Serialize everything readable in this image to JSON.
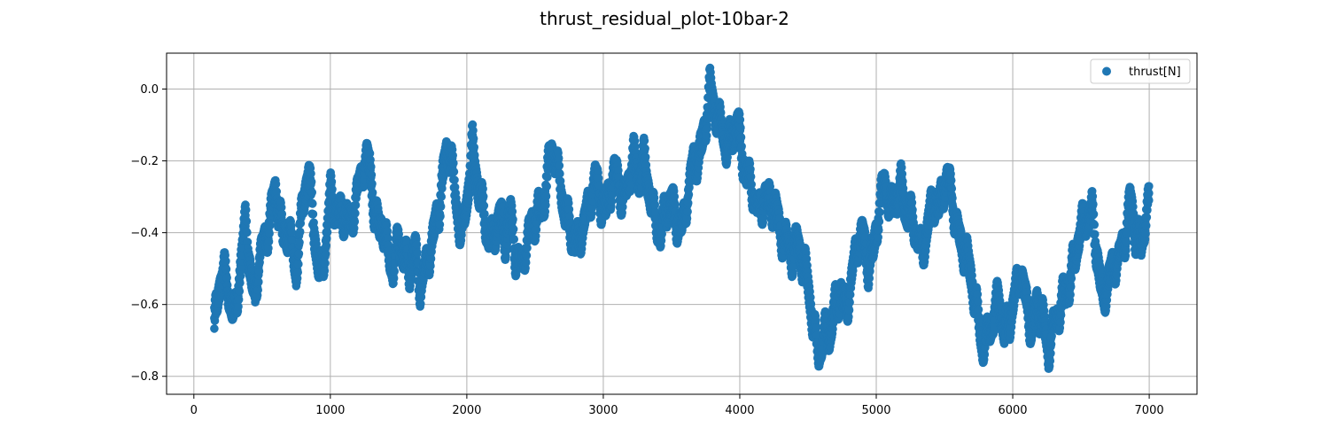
{
  "chart_data": {
    "type": "scatter",
    "title": "thrust_residual_plot-10bar-2",
    "xlabel": "",
    "ylabel": "",
    "xlim": [
      -200,
      7350
    ],
    "ylim": [
      -0.85,
      0.1
    ],
    "x_ticks": [
      0,
      1000,
      2000,
      3000,
      4000,
      5000,
      6000,
      7000
    ],
    "x_tick_labels": [
      "0",
      "1000",
      "2000",
      "3000",
      "4000",
      "5000",
      "6000",
      "7000"
    ],
    "y_ticks": [
      0.0,
      -0.2,
      -0.4,
      -0.6,
      -0.8
    ],
    "y_tick_labels": [
      "0.0",
      "−0.2",
      "−0.4",
      "−0.6",
      "−0.8"
    ],
    "grid": true,
    "legend_position": "top-right",
    "series": [
      {
        "name": "thrust[N]",
        "color": "#1f77b4",
        "marker": "circle",
        "x_range": [
          150,
          7000
        ],
        "envelope": [
          [
            150,
            -0.66
          ],
          [
            180,
            -0.57
          ],
          [
            220,
            -0.52
          ],
          [
            260,
            -0.58
          ],
          [
            300,
            -0.62
          ],
          [
            340,
            -0.48
          ],
          [
            380,
            -0.38
          ],
          [
            420,
            -0.55
          ],
          [
            450,
            -0.6
          ],
          [
            480,
            -0.45
          ],
          [
            540,
            -0.38
          ],
          [
            600,
            -0.3
          ],
          [
            650,
            -0.42
          ],
          [
            700,
            -0.38
          ],
          [
            750,
            -0.5
          ],
          [
            800,
            -0.33
          ],
          [
            840,
            -0.25
          ],
          [
            880,
            -0.38
          ],
          [
            920,
            -0.5
          ],
          [
            960,
            -0.45
          ],
          [
            1000,
            -0.3
          ],
          [
            1050,
            -0.37
          ],
          [
            1100,
            -0.33
          ],
          [
            1150,
            -0.36
          ],
          [
            1200,
            -0.3
          ],
          [
            1250,
            -0.22
          ],
          [
            1290,
            -0.2
          ],
          [
            1330,
            -0.35
          ],
          [
            1380,
            -0.38
          ],
          [
            1420,
            -0.47
          ],
          [
            1460,
            -0.52
          ],
          [
            1500,
            -0.4
          ],
          [
            1540,
            -0.45
          ],
          [
            1580,
            -0.5
          ],
          [
            1620,
            -0.47
          ],
          [
            1660,
            -0.57
          ],
          [
            1700,
            -0.48
          ],
          [
            1750,
            -0.4
          ],
          [
            1800,
            -0.33
          ],
          [
            1850,
            -0.2
          ],
          [
            1880,
            -0.17
          ],
          [
            1920,
            -0.3
          ],
          [
            1960,
            -0.4
          ],
          [
            2000,
            -0.32
          ],
          [
            2040,
            -0.18
          ],
          [
            2080,
            -0.27
          ],
          [
            2120,
            -0.32
          ],
          [
            2160,
            -0.4
          ],
          [
            2200,
            -0.42
          ],
          [
            2240,
            -0.37
          ],
          [
            2280,
            -0.42
          ],
          [
            2320,
            -0.33
          ],
          [
            2360,
            -0.45
          ],
          [
            2400,
            -0.5
          ],
          [
            2440,
            -0.45
          ],
          [
            2480,
            -0.38
          ],
          [
            2520,
            -0.33
          ],
          [
            2560,
            -0.3
          ],
          [
            2620,
            -0.18
          ],
          [
            2660,
            -0.23
          ],
          [
            2700,
            -0.3
          ],
          [
            2740,
            -0.35
          ],
          [
            2780,
            -0.4
          ],
          [
            2820,
            -0.45
          ],
          [
            2860,
            -0.38
          ],
          [
            2900,
            -0.32
          ],
          [
            2940,
            -0.22
          ],
          [
            2980,
            -0.3
          ],
          [
            3020,
            -0.35
          ],
          [
            3060,
            -0.28
          ],
          [
            3100,
            -0.23
          ],
          [
            3140,
            -0.3
          ],
          [
            3180,
            -0.25
          ],
          [
            3220,
            -0.2
          ],
          [
            3260,
            -0.27
          ],
          [
            3300,
            -0.2
          ],
          [
            3340,
            -0.27
          ],
          [
            3380,
            -0.35
          ],
          [
            3420,
            -0.42
          ],
          [
            3460,
            -0.35
          ],
          [
            3500,
            -0.32
          ],
          [
            3540,
            -0.35
          ],
          [
            3580,
            -0.37
          ],
          [
            3620,
            -0.3
          ],
          [
            3660,
            -0.22
          ],
          [
            3700,
            -0.2
          ],
          [
            3740,
            -0.1
          ],
          [
            3780,
            0.02
          ],
          [
            3820,
            -0.07
          ],
          [
            3860,
            -0.12
          ],
          [
            3900,
            -0.17
          ],
          [
            3940,
            -0.12
          ],
          [
            3980,
            -0.07
          ],
          [
            4020,
            -0.2
          ],
          [
            4060,
            -0.27
          ],
          [
            4100,
            -0.3
          ],
          [
            4140,
            -0.33
          ],
          [
            4180,
            -0.28
          ],
          [
            4220,
            -0.32
          ],
          [
            4260,
            -0.35
          ],
          [
            4300,
            -0.42
          ],
          [
            4340,
            -0.4
          ],
          [
            4380,
            -0.45
          ],
          [
            4420,
            -0.43
          ],
          [
            4460,
            -0.5
          ],
          [
            4500,
            -0.55
          ],
          [
            4540,
            -0.65
          ],
          [
            4580,
            -0.72
          ],
          [
            4620,
            -0.68
          ],
          [
            4660,
            -0.7
          ],
          [
            4700,
            -0.62
          ],
          [
            4740,
            -0.55
          ],
          [
            4780,
            -0.6
          ],
          [
            4820,
            -0.52
          ],
          [
            4860,
            -0.45
          ],
          [
            4900,
            -0.42
          ],
          [
            4940,
            -0.48
          ],
          [
            4980,
            -0.43
          ],
          [
            5020,
            -0.33
          ],
          [
            5060,
            -0.27
          ],
          [
            5100,
            -0.35
          ],
          [
            5140,
            -0.3
          ],
          [
            5180,
            -0.25
          ],
          [
            5220,
            -0.33
          ],
          [
            5260,
            -0.38
          ],
          [
            5300,
            -0.43
          ],
          [
            5340,
            -0.45
          ],
          [
            5380,
            -0.35
          ],
          [
            5420,
            -0.3
          ],
          [
            5460,
            -0.35
          ],
          [
            5500,
            -0.28
          ],
          [
            5540,
            -0.25
          ],
          [
            5580,
            -0.35
          ],
          [
            5620,
            -0.42
          ],
          [
            5660,
            -0.48
          ],
          [
            5700,
            -0.55
          ],
          [
            5740,
            -0.62
          ],
          [
            5780,
            -0.7
          ],
          [
            5820,
            -0.67
          ],
          [
            5860,
            -0.65
          ],
          [
            5900,
            -0.6
          ],
          [
            5940,
            -0.68
          ],
          [
            5980,
            -0.62
          ],
          [
            6020,
            -0.55
          ],
          [
            6060,
            -0.52
          ],
          [
            6100,
            -0.62
          ],
          [
            6140,
            -0.67
          ],
          [
            6180,
            -0.58
          ],
          [
            6220,
            -0.62
          ],
          [
            6260,
            -0.75
          ],
          [
            6300,
            -0.68
          ],
          [
            6340,
            -0.62
          ],
          [
            6380,
            -0.55
          ],
          [
            6420,
            -0.52
          ],
          [
            6460,
            -0.47
          ],
          [
            6500,
            -0.4
          ],
          [
            6540,
            -0.37
          ],
          [
            6580,
            -0.32
          ],
          [
            6620,
            -0.45
          ],
          [
            6660,
            -0.6
          ],
          [
            6700,
            -0.55
          ],
          [
            6740,
            -0.5
          ],
          [
            6780,
            -0.45
          ],
          [
            6820,
            -0.4
          ],
          [
            6860,
            -0.32
          ],
          [
            6900,
            -0.42
          ],
          [
            6940,
            -0.45
          ],
          [
            6980,
            -0.32
          ],
          [
            7000,
            -0.3
          ]
        ]
      }
    ]
  }
}
